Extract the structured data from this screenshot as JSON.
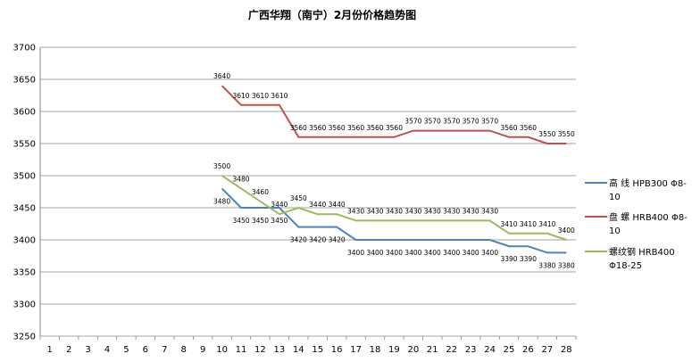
{
  "chart_data": {
    "type": "line",
    "title": "广西华翔（南宁）2月份价格趋势图",
    "xlabel": "",
    "ylabel": "",
    "x": [
      1,
      2,
      3,
      4,
      5,
      6,
      7,
      8,
      9,
      10,
      11,
      12,
      13,
      14,
      15,
      16,
      17,
      18,
      19,
      20,
      21,
      22,
      23,
      24,
      25,
      26,
      27,
      28
    ],
    "x_ticks": [
      "1",
      "2",
      "3",
      "4",
      "5",
      "6",
      "7",
      "8",
      "9",
      "10",
      "11",
      "12",
      "13",
      "14",
      "15",
      "16",
      "17",
      "18",
      "19",
      "20",
      "21",
      "22",
      "23",
      "24",
      "25",
      "26",
      "27",
      "28"
    ],
    "ylim": [
      3250,
      3700
    ],
    "y_ticks": [
      "3250",
      "3300",
      "3350",
      "3400",
      "3450",
      "3500",
      "3550",
      "3600",
      "3650",
      "3700"
    ],
    "grid": "horizontal",
    "legend_position": "right",
    "series": [
      {
        "name_lines": [
          "高 线 HPB300 Φ8-",
          "10"
        ],
        "color": "#4F81BD",
        "values": [
          null,
          null,
          null,
          null,
          null,
          null,
          null,
          null,
          null,
          3480,
          3450,
          3450,
          3450,
          3420,
          3420,
          3420,
          3400,
          3400,
          3400,
          3400,
          3400,
          3400,
          3400,
          3400,
          3390,
          3390,
          3380,
          3380
        ]
      },
      {
        "name_lines": [
          "盘 螺 HRB400 Φ8-",
          "10"
        ],
        "color": "#C0504D",
        "values": [
          null,
          null,
          null,
          null,
          null,
          null,
          null,
          null,
          null,
          3640,
          3610,
          3610,
          3610,
          3560,
          3560,
          3560,
          3560,
          3560,
          3560,
          3570,
          3570,
          3570,
          3570,
          3570,
          3560,
          3560,
          3550,
          3550
        ]
      },
      {
        "name_lines": [
          "螺纹钢 HRB400",
          "Φ18-25"
        ],
        "color": "#9BBB59",
        "values": [
          null,
          null,
          null,
          null,
          null,
          null,
          null,
          null,
          null,
          3500,
          3480,
          3460,
          3440,
          3450,
          3440,
          3440,
          3430,
          3430,
          3430,
          3430,
          3430,
          3430,
          3430,
          3430,
          3410,
          3410,
          3410,
          3400
        ]
      }
    ]
  }
}
